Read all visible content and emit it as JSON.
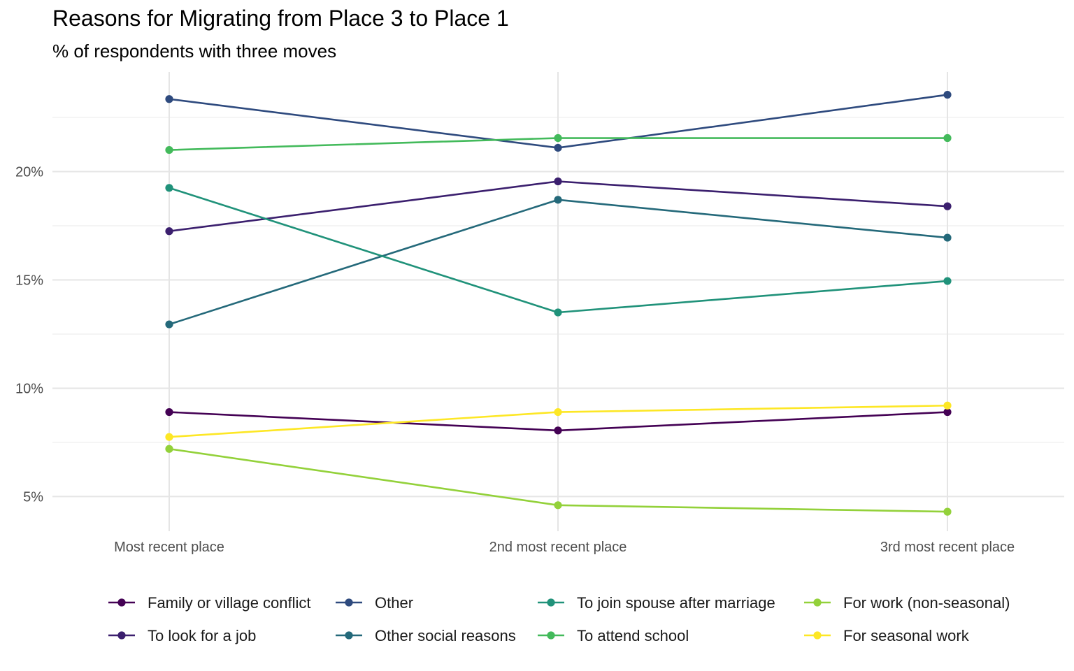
{
  "title": "Reasons for Migrating from Place 3 to Place 1",
  "subtitle": "% of respondents with three moves",
  "chart_data": {
    "type": "line",
    "title": "Reasons for Migrating from Place 3 to Place 1",
    "subtitle": "% of respondents with three moves",
    "xlabel": "",
    "ylabel": "",
    "categories": [
      "Most recent place",
      "2nd most recent place",
      "3rd most recent place"
    ],
    "y_ticks": [
      5,
      10,
      15,
      20
    ],
    "y_tick_labels": [
      "5%",
      "10%",
      "15%",
      "20%"
    ],
    "ylim": [
      3.4,
      24.6
    ],
    "grid": true,
    "legend_position": "bottom",
    "series": [
      {
        "name": "Family or village conflict",
        "color": "#440154",
        "values": [
          8.9,
          8.05,
          8.9
        ]
      },
      {
        "name": "To look for a job",
        "color": "#3B1F6E",
        "values": [
          17.25,
          19.55,
          18.4
        ]
      },
      {
        "name": "Other",
        "color": "#2E4A7E",
        "values": [
          23.35,
          21.1,
          23.55
        ]
      },
      {
        "name": "Other social reasons",
        "color": "#24697A",
        "values": [
          12.95,
          18.7,
          16.95
        ]
      },
      {
        "name": "To join spouse after marriage",
        "color": "#20927A",
        "values": [
          19.25,
          13.5,
          14.95
        ]
      },
      {
        "name": "To attend school",
        "color": "#43BA5B",
        "values": [
          21.0,
          21.55,
          21.55
        ]
      },
      {
        "name": "For work (non-seasonal)",
        "color": "#93D13A",
        "values": [
          7.2,
          4.6,
          4.3
        ]
      },
      {
        "name": "For seasonal work",
        "color": "#FDE725",
        "values": [
          7.75,
          8.9,
          9.2
        ]
      }
    ]
  }
}
